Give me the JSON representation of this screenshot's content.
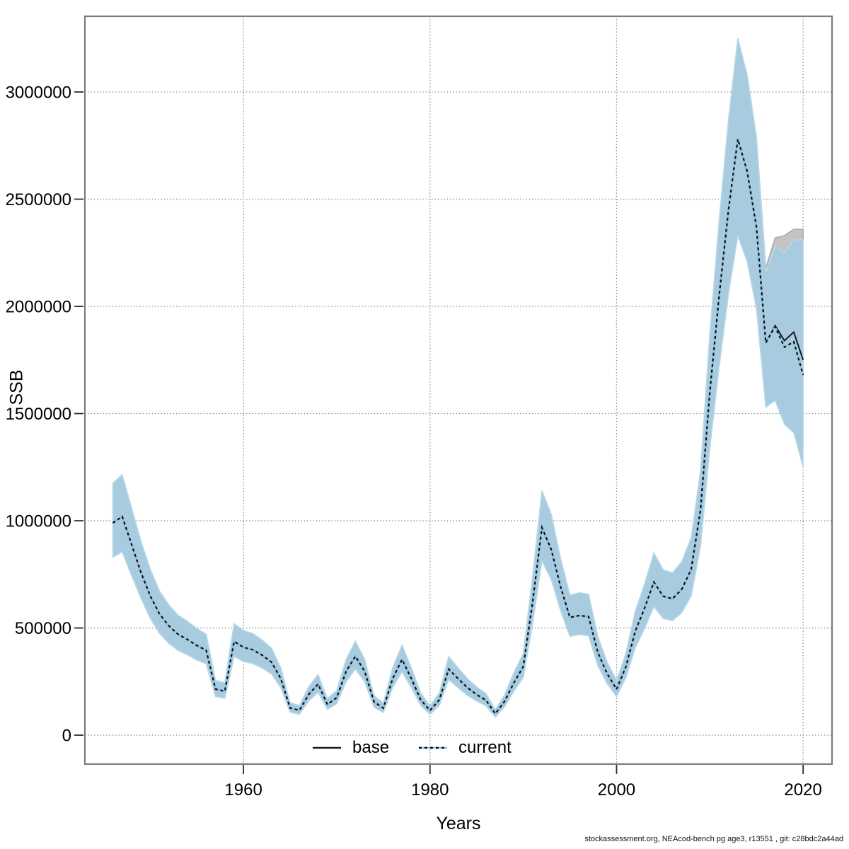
{
  "figure": {
    "footer": "stockassessment.org, NEAcod-bench pg age3, r13551 , git: c28bdc2a44ad"
  },
  "axes": {
    "x_label": "Years",
    "y_label": "SSB",
    "x_ticks": [
      1960,
      1980,
      2000,
      2020
    ],
    "y_ticks": [
      0,
      500000,
      1000000,
      1500000,
      2000000,
      2500000,
      3000000
    ],
    "x_range": [
      1943.0,
      2023.1
    ],
    "y_range": [
      -135000,
      3353000
    ]
  },
  "legend": {
    "items": [
      {
        "label": "base"
      },
      {
        "label": "current"
      }
    ]
  },
  "chart_data": {
    "type": "line",
    "title": "",
    "xlabel": "Years",
    "ylabel": "SSB",
    "grid": "dotted",
    "legend_position": "bottom-center-inside",
    "x": [
      1946,
      1947,
      1948,
      1949,
      1950,
      1951,
      1952,
      1953,
      1954,
      1955,
      1956,
      1957,
      1958,
      1959,
      1960,
      1961,
      1962,
      1963,
      1964,
      1965,
      1966,
      1967,
      1968,
      1969,
      1970,
      1971,
      1972,
      1973,
      1974,
      1975,
      1976,
      1977,
      1978,
      1979,
      1980,
      1981,
      1982,
      1983,
      1984,
      1985,
      1986,
      1987,
      1988,
      1989,
      1990,
      1991,
      1992,
      1993,
      1994,
      1995,
      1996,
      1997,
      1998,
      1999,
      2000,
      2001,
      2002,
      2003,
      2004,
      2005,
      2006,
      2007,
      2008,
      2009,
      2010,
      2011,
      2012,
      2013,
      2014,
      2015,
      2016,
      2017,
      2018,
      2019,
      2020
    ],
    "series": [
      {
        "name": "base",
        "line_style": "solid",
        "line_color": "#1a1a1a",
        "band_fill": "#c4c4c4",
        "band_stroke": "#a6a6a6",
        "median": [
          990000,
          1020000,
          890000,
          760000,
          650000,
          565000,
          510000,
          470000,
          446000,
          418000,
          396000,
          215000,
          205000,
          437000,
          410000,
          398000,
          373000,
          341000,
          264000,
          127000,
          116000,
          190000,
          238000,
          143000,
          175000,
          297000,
          368000,
          297000,
          155000,
          126000,
          264000,
          353000,
          264000,
          165000,
          115000,
          165000,
          308000,
          264000,
          222000,
          189000,
          163000,
          100000,
          158000,
          245000,
          320000,
          620000,
          968000,
          866000,
          692000,
          549000,
          558000,
          553000,
          385000,
          286000,
          214000,
          319000,
          484000,
          592000,
          714000,
          648000,
          636000,
          681000,
          773000,
          1050000,
          1600000,
          2050000,
          2450000,
          2780000,
          2630000,
          2370000,
          1830000,
          1910000,
          1840000,
          1880000,
          1750000
        ],
        "lo": [
          830000,
          855000,
          745000,
          640000,
          545000,
          475000,
          428000,
          395000,
          375000,
          350000,
          333000,
          180000,
          172000,
          367000,
          344000,
          334000,
          313000,
          286000,
          222000,
          107000,
          97000,
          160000,
          200000,
          120000,
          147000,
          249000,
          309000,
          249000,
          130000,
          106000,
          222000,
          297000,
          222000,
          139000,
          97000,
          139000,
          259000,
          222000,
          186000,
          159000,
          137000,
          84000,
          133000,
          206000,
          269000,
          521000,
          813000,
          727000,
          581000,
          461000,
          469000,
          464000,
          323000,
          240000,
          180000,
          268000,
          407000,
          497000,
          600000,
          544000,
          534000,
          572000,
          649000,
          880000,
          1340000,
          1720000,
          2060000,
          2330000,
          2210000,
          1990000,
          1530000,
          1580000,
          1500000,
          1480000,
          1340000
        ],
        "hi": [
          1175000,
          1215000,
          1060000,
          905000,
          775000,
          672000,
          607000,
          559000,
          531000,
          497000,
          471000,
          256000,
          244000,
          520000,
          488000,
          474000,
          444000,
          406000,
          314000,
          151000,
          138000,
          226000,
          283000,
          170000,
          208000,
          353000,
          438000,
          353000,
          184000,
          150000,
          314000,
          420000,
          314000,
          196000,
          137000,
          196000,
          367000,
          314000,
          264000,
          225000,
          194000,
          119000,
          188000,
          292000,
          381000,
          738000,
          1140000,
          1030000,
          823000,
          653000,
          664000,
          658000,
          458000,
          340000,
          255000,
          380000,
          576000,
          704000,
          850000,
          771000,
          757000,
          810000,
          920000,
          1230000,
          1870000,
          2400000,
          2870000,
          3250000,
          3080000,
          2790000,
          2180000,
          2320000,
          2330000,
          2360000,
          2360000
        ]
      },
      {
        "name": "current",
        "line_style": "dotted",
        "line_under_color": "#8cc5e8",
        "line_dash_color": "#0d0d0d",
        "band_fill": "#a9cbdf",
        "band_stroke": "#b7daec",
        "median": [
          990000,
          1020000,
          890000,
          760000,
          650000,
          565000,
          510000,
          470000,
          446000,
          418000,
          396000,
          215000,
          205000,
          437000,
          410000,
          398000,
          373000,
          341000,
          264000,
          127000,
          116000,
          190000,
          238000,
          143000,
          175000,
          297000,
          368000,
          297000,
          155000,
          126000,
          264000,
          353000,
          264000,
          165000,
          115000,
          165000,
          308000,
          264000,
          222000,
          189000,
          163000,
          100000,
          158000,
          245000,
          320000,
          620000,
          968000,
          866000,
          692000,
          549000,
          558000,
          553000,
          385000,
          286000,
          214000,
          319000,
          484000,
          592000,
          714000,
          648000,
          636000,
          681000,
          773000,
          1050000,
          1600000,
          2050000,
          2450000,
          2780000,
          2630000,
          2370000,
          1830000,
          1905000,
          1810000,
          1835000,
          1680000
        ],
        "lo": [
          830000,
          855000,
          745000,
          640000,
          545000,
          475000,
          428000,
          395000,
          375000,
          350000,
          333000,
          180000,
          172000,
          367000,
          344000,
          334000,
          313000,
          286000,
          222000,
          107000,
          97000,
          160000,
          200000,
          120000,
          147000,
          249000,
          309000,
          249000,
          130000,
          106000,
          222000,
          297000,
          222000,
          139000,
          97000,
          139000,
          259000,
          222000,
          186000,
          159000,
          137000,
          84000,
          133000,
          206000,
          269000,
          521000,
          813000,
          727000,
          581000,
          461000,
          469000,
          464000,
          323000,
          240000,
          180000,
          268000,
          407000,
          497000,
          600000,
          544000,
          534000,
          572000,
          649000,
          880000,
          1340000,
          1720000,
          2060000,
          2330000,
          2210000,
          1990000,
          1530000,
          1560000,
          1450000,
          1410000,
          1250000
        ],
        "hi": [
          1175000,
          1215000,
          1060000,
          905000,
          775000,
          672000,
          607000,
          559000,
          531000,
          497000,
          471000,
          256000,
          244000,
          520000,
          488000,
          474000,
          444000,
          406000,
          314000,
          151000,
          138000,
          226000,
          283000,
          170000,
          208000,
          353000,
          438000,
          353000,
          184000,
          150000,
          314000,
          420000,
          314000,
          196000,
          137000,
          196000,
          367000,
          314000,
          264000,
          225000,
          194000,
          119000,
          188000,
          292000,
          381000,
          738000,
          1140000,
          1030000,
          823000,
          653000,
          664000,
          658000,
          458000,
          340000,
          255000,
          380000,
          576000,
          704000,
          850000,
          771000,
          757000,
          810000,
          920000,
          1230000,
          1870000,
          2400000,
          2870000,
          3250000,
          3080000,
          2790000,
          2160000,
          2280000,
          2250000,
          2310000,
          2310000
        ]
      }
    ]
  }
}
